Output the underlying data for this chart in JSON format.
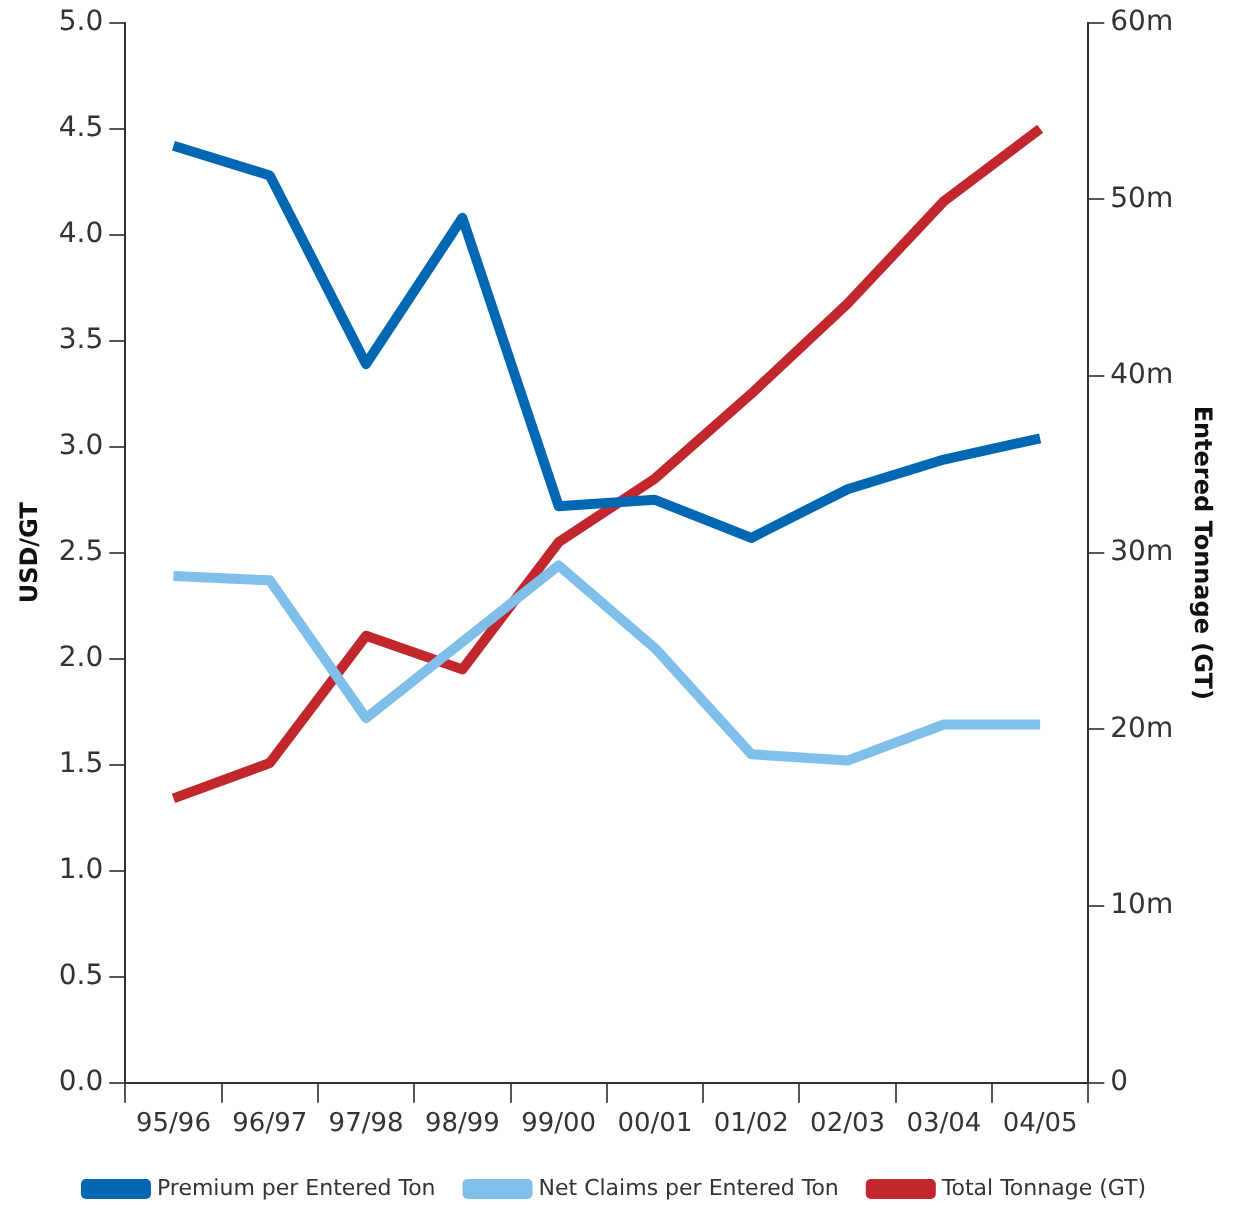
{
  "chart_data": {
    "type": "line",
    "ylabel": "USD/GT",
    "y2label": "Entered Tonnage (GT)",
    "categories": [
      "95/96",
      "96/97",
      "97/98",
      "98/99",
      "99/00",
      "00/01",
      "01/02",
      "02/03",
      "03/04",
      "04/05"
    ],
    "series": [
      {
        "name": "Premium per Entered Ton",
        "color": "#0068b3",
        "values": [
          4.42,
          4.28,
          3.39,
          4.08,
          2.72,
          2.75,
          2.57,
          2.8,
          2.94,
          3.04
        ]
      },
      {
        "name": "Net Claims per Entered Ton",
        "color": "#7fbfea",
        "values": [
          2.39,
          2.37,
          1.72,
          2.08,
          2.44,
          2.05,
          1.55,
          1.52,
          1.69,
          1.69
        ]
      },
      {
        "name": "Total Tonnage (GT)",
        "color": "#c1272d",
        "axis": "y2",
        "values": [
          16.1,
          18.1,
          25.3,
          23.4,
          30.6,
          34.2,
          39.0,
          44.1,
          49.9,
          54.0
        ]
      }
    ],
    "ylim": [
      0,
      5
    ],
    "yticks": [
      {
        "value": 0,
        "label": "0.0"
      },
      0.5,
      {
        "value": 1,
        "label": "1.0"
      },
      1.5,
      {
        "value": 2,
        "label": "2.0"
      },
      2.5,
      {
        "value": 3,
        "label": "3.0"
      },
      3.5,
      {
        "value": 4,
        "label": "4.0"
      },
      4.5,
      {
        "value": 5,
        "label": "5.0"
      }
    ],
    "y2lim": [
      0,
      60
    ],
    "y2ticks": [
      0,
      {
        "value": 10,
        "label": "10m"
      },
      {
        "value": 20,
        "label": "20m"
      },
      {
        "value": 30,
        "label": "30m"
      },
      {
        "value": 40,
        "label": "40m"
      },
      {
        "value": 50,
        "label": "50m"
      },
      {
        "value": 60,
        "label": "60m"
      }
    ],
    "grid": false,
    "legend": "bottom",
    "marker": "none",
    "line_style": "solid"
  }
}
